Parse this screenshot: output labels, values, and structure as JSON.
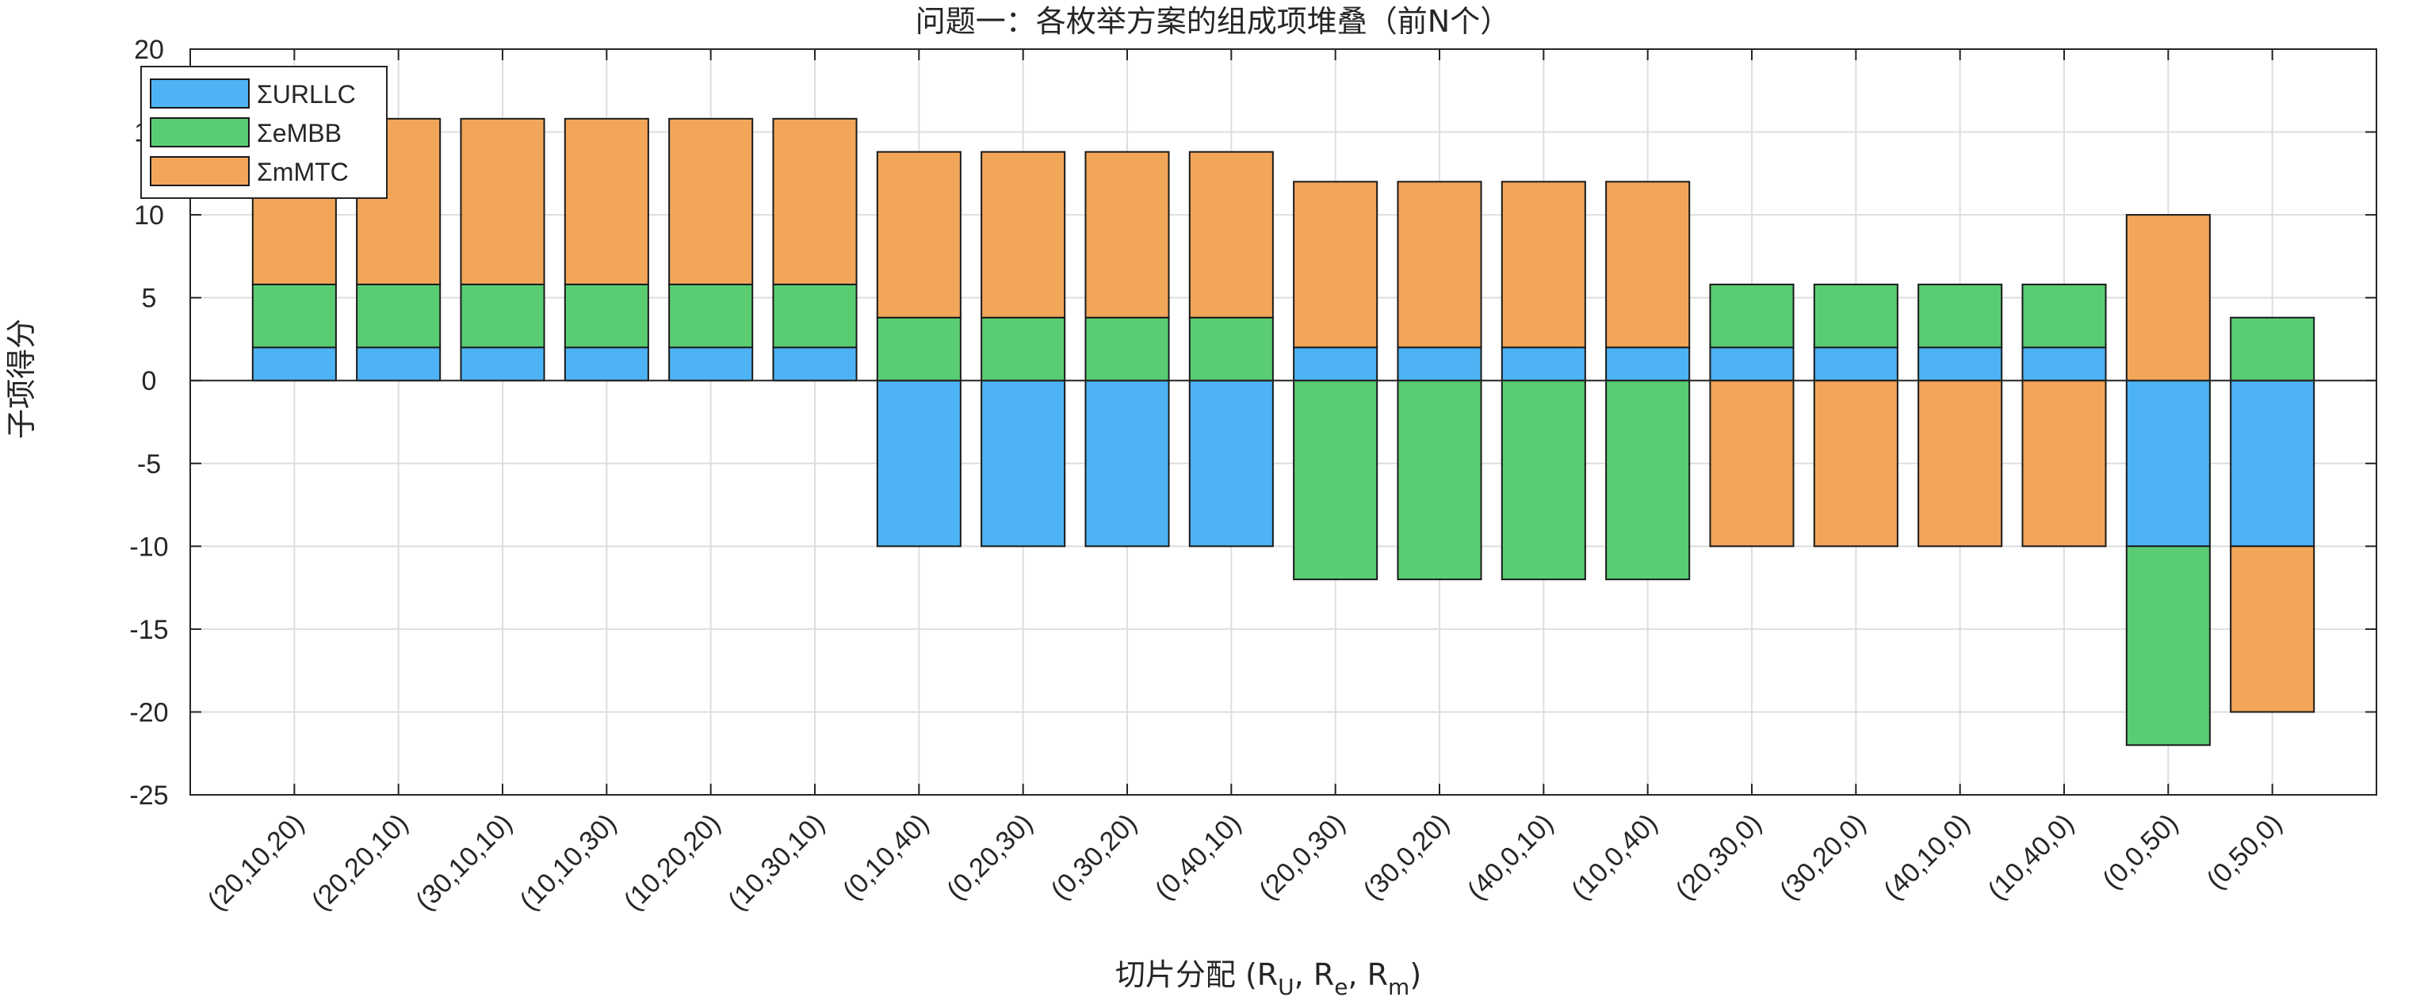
{
  "chart_data": {
    "type": "bar",
    "stacked": true,
    "title": "问题一：各枚举方案的组成项堆叠（前N个）",
    "xlabel": "切片分配 (R_U, R_e, R_m)",
    "xlabel_parts": {
      "prefix": "切片分配 (R",
      "sub1": "U",
      "mid1": ", R",
      "sub2": "e",
      "mid2": ", R",
      "sub3": "m",
      "suffix": ")"
    },
    "ylabel": "子项得分",
    "ylim": [
      -25,
      20
    ],
    "yticks": [
      -25,
      -20,
      -15,
      -10,
      -5,
      0,
      5,
      10,
      15,
      20
    ],
    "ytick_labels": [
      "-25",
      "-20",
      "-15",
      "-10",
      "-5",
      "0",
      "5",
      "10",
      "15",
      "20"
    ],
    "grid": true,
    "legend_position": "top-left",
    "categories": [
      "(20,10,20)",
      "(20,20,10)",
      "(30,10,10)",
      "(10,10,30)",
      "(10,20,20)",
      "(10,30,10)",
      "(0,10,40)",
      "(0,20,30)",
      "(0,30,20)",
      "(0,40,10)",
      "(20,0,30)",
      "(30,0,20)",
      "(40,0,10)",
      "(10,0,40)",
      "(20,30,0)",
      "(30,20,0)",
      "(40,10,0)",
      "(10,40,0)",
      "(0,0,50)",
      "(0,50,0)"
    ],
    "series": [
      {
        "name": "ΣURLLC",
        "color": "#4DB3F5",
        "values": [
          2,
          2,
          2,
          2,
          2,
          2,
          -10,
          -10,
          -10,
          -10,
          2,
          2,
          2,
          2,
          2,
          2,
          2,
          2,
          -10,
          -10
        ]
      },
      {
        "name": "ΣeMBB",
        "color": "#5ACD73",
        "values": [
          3.8,
          3.8,
          3.8,
          3.8,
          3.8,
          3.8,
          3.8,
          3.8,
          3.8,
          3.8,
          -12,
          -12,
          -12,
          -12,
          3.8,
          3.8,
          3.8,
          3.8,
          -12,
          3.8
        ]
      },
      {
        "name": "ΣmMTC",
        "color": "#F2A65A",
        "values": [
          10,
          10,
          10,
          10,
          10,
          10,
          10,
          10,
          10,
          10,
          10,
          10,
          10,
          10,
          -10,
          -10,
          -10,
          -10,
          10,
          -10
        ]
      }
    ]
  }
}
